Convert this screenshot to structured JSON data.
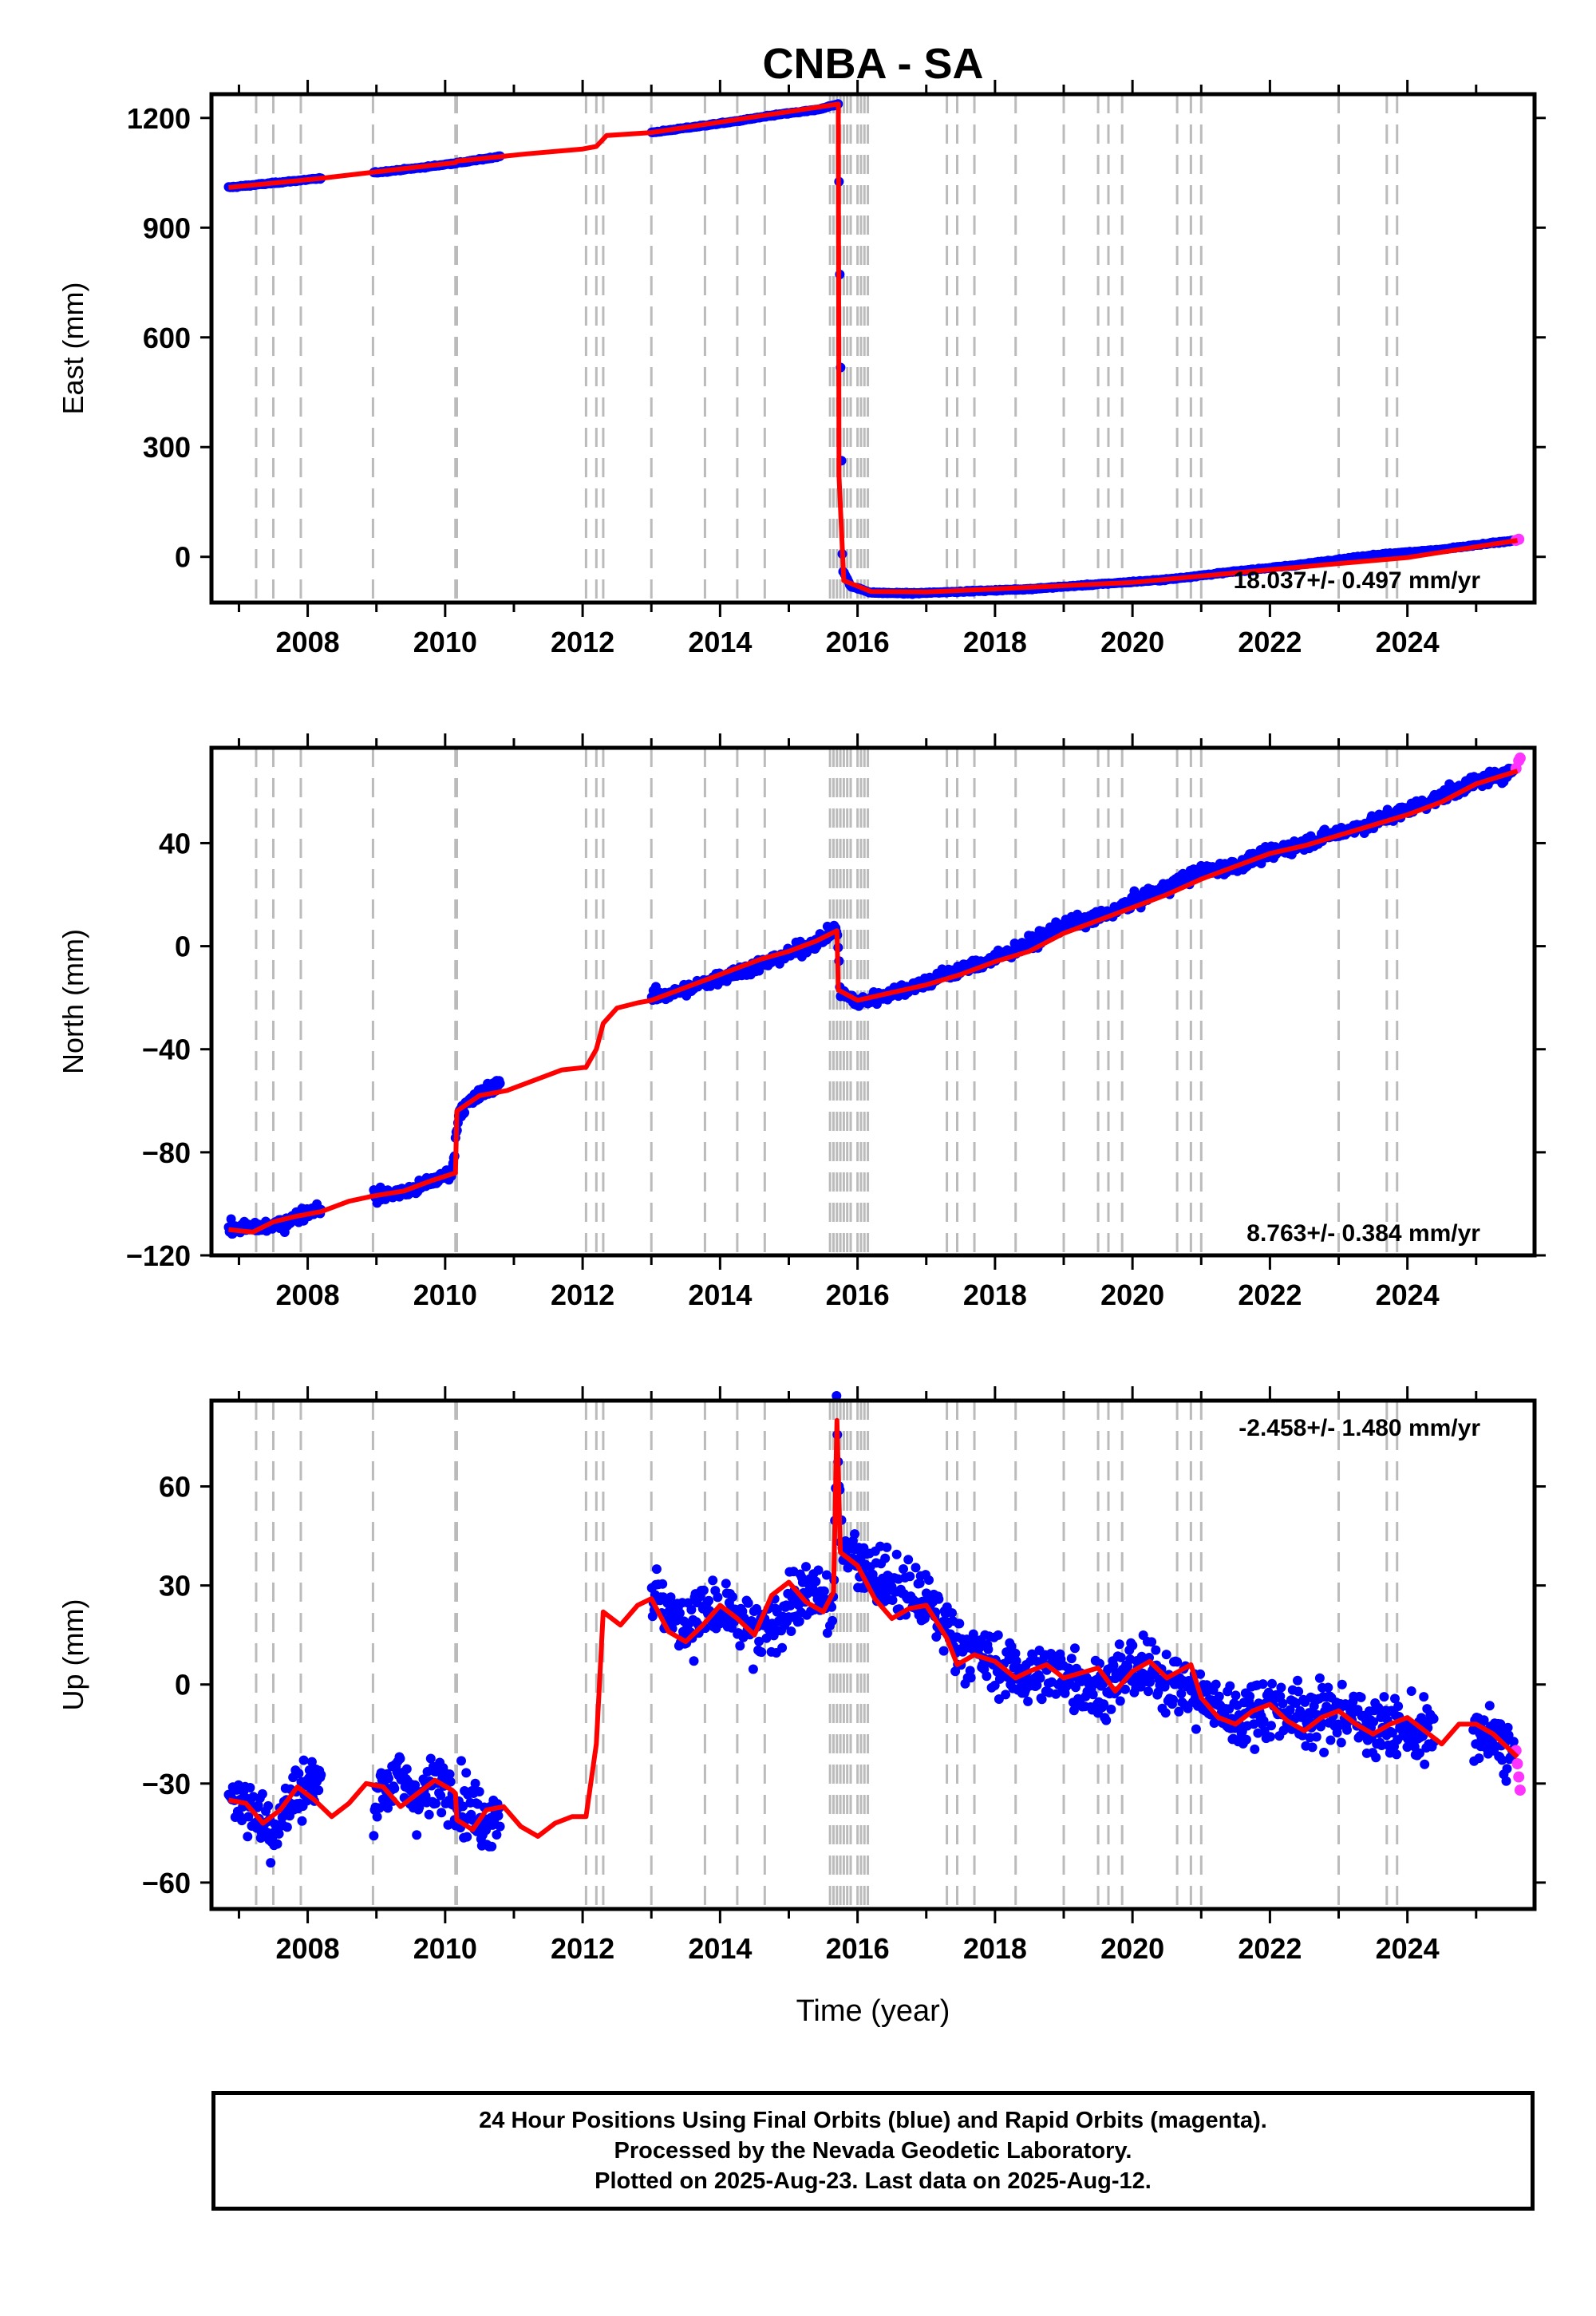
{
  "title": "CNBA - SA",
  "xlabel": "Time (year)",
  "colors": {
    "final": "#0000ff",
    "rapid": "#ff33ff",
    "model": "#ff0000",
    "steps": "#bbbbbb"
  },
  "x_ticks": [
    2008,
    2010,
    2012,
    2014,
    2016,
    2018,
    2020,
    2022,
    2024
  ],
  "footer": {
    "line1": "24 Hour Positions Using Final Orbits (blue) and Rapid Orbits (magenta).",
    "line2": "Processed by the Nevada Geodetic Laboratory.",
    "line3": "Plotted on 2025-Aug-23. Last data on 2025-Aug-12."
  },
  "chart_data": [
    {
      "type": "scatter",
      "ylabel": "East (mm)",
      "xlim": [
        2006.6,
        2025.85
      ],
      "ylim": [
        -125,
        1265
      ],
      "yticks": [
        0,
        300,
        600,
        900,
        1200
      ],
      "rate": "18.037+/- 0.497 mm/yr",
      "rate_position": "bottom-right",
      "step_times": [
        2007.25,
        2007.5,
        2007.9,
        2008.95,
        2010.15,
        2010.17,
        2012.05,
        2012.2,
        2012.3,
        2013.0,
        2013.78,
        2014.25,
        2014.65,
        2015.6,
        2015.65,
        2015.7,
        2015.75,
        2015.8,
        2015.85,
        2015.9,
        2016.0,
        2016.05,
        2016.1,
        2016.15,
        2017.3,
        2017.45,
        2017.7,
        2018.3,
        2019.0,
        2019.5,
        2019.65,
        2019.85,
        2020.65,
        2020.85,
        2021.0,
        2023.0,
        2023.7,
        2023.85
      ],
      "gaps": [
        [
          2008.2,
          2008.95
        ],
        [
          2010.8,
          2013.0
        ]
      ],
      "series": [
        {
          "name": "Final Orbits",
          "x": [
            2006.85,
            2007.5,
            2008.2,
            2008.95,
            2009.6,
            2010.3,
            2010.8,
            2013.0,
            2013.6,
            2014.2,
            2014.8,
            2015.4,
            2015.72,
            2015.78,
            2015.9,
            2016.2,
            2016.8,
            2017.5,
            2018.5,
            2019.5,
            2020.5,
            2021.5,
            2022.5,
            2023.5,
            2024.5,
            2025.55
          ],
          "values": [
            1010,
            1022,
            1035,
            1050,
            1063,
            1080,
            1095,
            1160,
            1175,
            1190,
            1208,
            1222,
            1238,
            -35,
            -80,
            -98,
            -100,
            -95,
            -88,
            -75,
            -62,
            -40,
            -20,
            5,
            20,
            45
          ]
        },
        {
          "name": "Rapid Orbits",
          "x": [
            2025.58,
            2025.62
          ],
          "values": [
            45,
            48
          ]
        },
        {
          "name": "Model",
          "x": [
            2006.85,
            2008.2,
            2010.15,
            2010.17,
            2011.2,
            2012.0,
            2012.2,
            2012.35,
            2013.0,
            2015.72,
            2015.73,
            2015.8,
            2016.2,
            2017.0,
            2018.0,
            2020.0,
            2022.0,
            2024.0,
            2025.6
          ],
          "values": [
            1010,
            1035,
            1078,
            1082,
            1102,
            1115,
            1122,
            1152,
            1160,
            1238,
            220,
            -65,
            -95,
            -96,
            -88,
            -70,
            -35,
            -2,
            45
          ]
        }
      ]
    },
    {
      "type": "scatter",
      "ylabel": "North (mm)",
      "xlim": [
        2006.6,
        2025.85
      ],
      "ylim": [
        -120,
        77
      ],
      "yticks": [
        -120,
        -80,
        -40,
        0,
        40
      ],
      "rate": "8.763+/- 0.384 mm/yr",
      "rate_position": "bottom-right",
      "step_times": [
        2007.25,
        2007.5,
        2007.9,
        2008.95,
        2010.15,
        2010.17,
        2012.05,
        2012.2,
        2012.3,
        2013.0,
        2013.78,
        2014.25,
        2014.65,
        2015.6,
        2015.65,
        2015.7,
        2015.75,
        2015.8,
        2015.85,
        2015.9,
        2016.0,
        2016.05,
        2016.1,
        2016.15,
        2017.3,
        2017.45,
        2017.7,
        2018.3,
        2019.0,
        2019.5,
        2019.65,
        2019.85,
        2020.65,
        2020.85,
        2021.0,
        2023.0,
        2023.7,
        2023.85
      ],
      "gaps": [
        [
          2008.2,
          2008.95
        ],
        [
          2010.8,
          2013.0
        ]
      ],
      "series": [
        {
          "name": "Final Orbits",
          "x": [
            2006.85,
            2007.3,
            2007.6,
            2008.0,
            2008.95,
            2009.5,
            2010.1,
            2010.2,
            2010.5,
            2010.75,
            2013.0,
            2013.5,
            2014.0,
            2014.5,
            2015.0,
            2015.5,
            2015.7,
            2015.75,
            2016.0,
            2016.5,
            2017.0,
            2017.5,
            2018.0,
            2018.5,
            2019.0,
            2019.5,
            2020.0,
            2020.5,
            2021.0,
            2021.5,
            2022.0,
            2022.5,
            2023.0,
            2023.5,
            2024.0,
            2024.5,
            2025.0,
            2025.55
          ],
          "values": [
            -110,
            -109,
            -108,
            -103,
            -97,
            -95,
            -88,
            -64,
            -58,
            -53,
            -20,
            -17,
            -12,
            -8,
            -3,
            3,
            7,
            -18,
            -22,
            -18,
            -14,
            -9,
            -5,
            1,
            8,
            11,
            17,
            23,
            29,
            31,
            36,
            40,
            44,
            48,
            53,
            58,
            64,
            68
          ]
        },
        {
          "name": "Rapid Orbits",
          "x": [
            2025.58,
            2025.62,
            2025.64
          ],
          "values": [
            69,
            72,
            73
          ]
        },
        {
          "name": "Model",
          "x": [
            2006.85,
            2007.2,
            2007.5,
            2007.8,
            2008.2,
            2008.6,
            2008.95,
            2009.4,
            2009.8,
            2010.15,
            2010.17,
            2010.5,
            2010.9,
            2011.3,
            2011.7,
            2012.05,
            2012.2,
            2012.3,
            2012.5,
            2012.8,
            2013.0,
            2013.4,
            2013.8,
            2014.2,
            2014.6,
            2015.0,
            2015.4,
            2015.7,
            2015.72,
            2016.0,
            2016.5,
            2017.0,
            2017.5,
            2018.0,
            2018.5,
            2019.0,
            2019.5,
            2020.0,
            2020.5,
            2021.0,
            2021.5,
            2022.0,
            2022.5,
            2023.0,
            2023.5,
            2024.0,
            2024.5,
            2025.0,
            2025.6
          ],
          "values": [
            -110,
            -111,
            -107,
            -105,
            -103,
            -99,
            -97,
            -95,
            -91,
            -88,
            -64,
            -58,
            -56,
            -52,
            -48,
            -47,
            -40,
            -30,
            -24,
            -22,
            -21,
            -17,
            -13,
            -9,
            -5,
            -2,
            2,
            6,
            -17,
            -21,
            -18,
            -15,
            -11,
            -6,
            -2,
            5,
            10,
            15,
            20,
            26,
            31,
            36,
            39,
            43,
            47,
            51,
            56,
            63,
            68
          ]
        }
      ]
    },
    {
      "type": "scatter",
      "ylabel": "Up (mm)",
      "xlim": [
        2006.6,
        2025.85
      ],
      "ylim": [
        -68,
        86
      ],
      "yticks": [
        -60,
        -30,
        0,
        30,
        60
      ],
      "rate": "-2.458+/- 1.480 mm/yr",
      "rate_position": "top-right",
      "step_times": [
        2007.25,
        2007.5,
        2007.9,
        2008.95,
        2010.15,
        2010.17,
        2012.05,
        2012.2,
        2012.3,
        2013.0,
        2013.78,
        2014.25,
        2014.65,
        2015.6,
        2015.65,
        2015.7,
        2015.75,
        2015.8,
        2015.85,
        2015.9,
        2016.0,
        2016.05,
        2016.1,
        2016.15,
        2017.3,
        2017.45,
        2017.7,
        2018.3,
        2019.0,
        2019.5,
        2019.65,
        2019.85,
        2020.65,
        2020.85,
        2021.0,
        2023.0,
        2023.7,
        2023.85
      ],
      "gaps": [
        [
          2008.2,
          2008.95
        ],
        [
          2010.8,
          2013.0
        ],
        [
          2024.4,
          2024.95
        ]
      ],
      "series": [
        {
          "name": "Final Orbits",
          "x": [
            2006.85,
            2007.2,
            2007.5,
            2007.8,
            2008.0,
            2008.95,
            2009.3,
            2009.6,
            2010.0,
            2010.3,
            2010.6,
            2010.75,
            2013.0,
            2013.4,
            2013.8,
            2014.2,
            2014.6,
            2015.0,
            2015.4,
            2015.65,
            2015.7,
            2015.75,
            2016.0,
            2016.5,
            2017.0,
            2017.5,
            2018.0,
            2018.5,
            2019.0,
            2019.5,
            2020.0,
            2020.5,
            2021.0,
            2021.5,
            2022.0,
            2022.5,
            2023.0,
            2023.5,
            2024.0,
            2024.4,
            2024.95,
            2025.3,
            2025.55
          ],
          "values": [
            -32,
            -38,
            -44,
            -34,
            -30,
            -34,
            -28,
            -34,
            -30,
            -36,
            -42,
            -38,
            28,
            18,
            22,
            20,
            14,
            24,
            28,
            22,
            82,
            45,
            38,
            30,
            25,
            12,
            6,
            2,
            4,
            -2,
            5,
            2,
            -4,
            -10,
            -6,
            -10,
            -8,
            -12,
            -14,
            -16,
            -14,
            -18,
            -20
          ]
        },
        {
          "name": "Rapid Orbits",
          "x": [
            2025.58,
            2025.6,
            2025.62,
            2025.64
          ],
          "values": [
            -20,
            -24,
            -28,
            -32
          ]
        },
        {
          "name": "Model",
          "x": [
            2006.85,
            2007.1,
            2007.35,
            2007.6,
            2007.85,
            2008.1,
            2008.35,
            2008.6,
            2008.85,
            2009.1,
            2009.35,
            2009.6,
            2009.85,
            2010.1,
            2010.15,
            2010.17,
            2010.4,
            2010.6,
            2010.85,
            2011.1,
            2011.35,
            2011.6,
            2011.85,
            2012.05,
            2012.2,
            2012.3,
            2012.55,
            2012.8,
            2013.0,
            2013.25,
            2013.5,
            2013.75,
            2014.0,
            2014.25,
            2014.5,
            2014.75,
            2015.0,
            2015.25,
            2015.5,
            2015.65,
            2015.7,
            2015.75,
            2016.0,
            2016.25,
            2016.5,
            2016.75,
            2017.0,
            2017.3,
            2017.45,
            2017.7,
            2018.0,
            2018.3,
            2018.5,
            2018.75,
            2019.0,
            2019.5,
            2019.75,
            2020.0,
            2020.25,
            2020.5,
            2020.85,
            2021.0,
            2021.25,
            2021.5,
            2021.75,
            2022.0,
            2022.25,
            2022.5,
            2022.75,
            2023.0,
            2023.25,
            2023.5,
            2023.75,
            2024.0,
            2024.25,
            2024.5,
            2024.75,
            2025.0,
            2025.25,
            2025.6
          ],
          "values": [
            -35,
            -36,
            -42,
            -38,
            -31,
            -35,
            -40,
            -36,
            -30,
            -31,
            -37,
            -33,
            -29,
            -32,
            -33,
            -41,
            -44,
            -38,
            -37,
            -43,
            -46,
            -42,
            -40,
            -40,
            -18,
            22,
            18,
            24,
            26,
            16,
            13,
            18,
            24,
            20,
            15,
            27,
            31,
            25,
            22,
            28,
            80,
            40,
            36,
            26,
            20,
            23,
            24,
            14,
            6,
            9,
            7,
            2,
            4,
            6,
            2,
            5,
            -2,
            4,
            7,
            2,
            6,
            -4,
            -10,
            -12,
            -8,
            -6,
            -11,
            -14,
            -10,
            -8,
            -12,
            -15,
            -12,
            -10,
            -14,
            -18,
            -12,
            -12,
            -15,
            -22
          ]
        }
      ]
    }
  ]
}
